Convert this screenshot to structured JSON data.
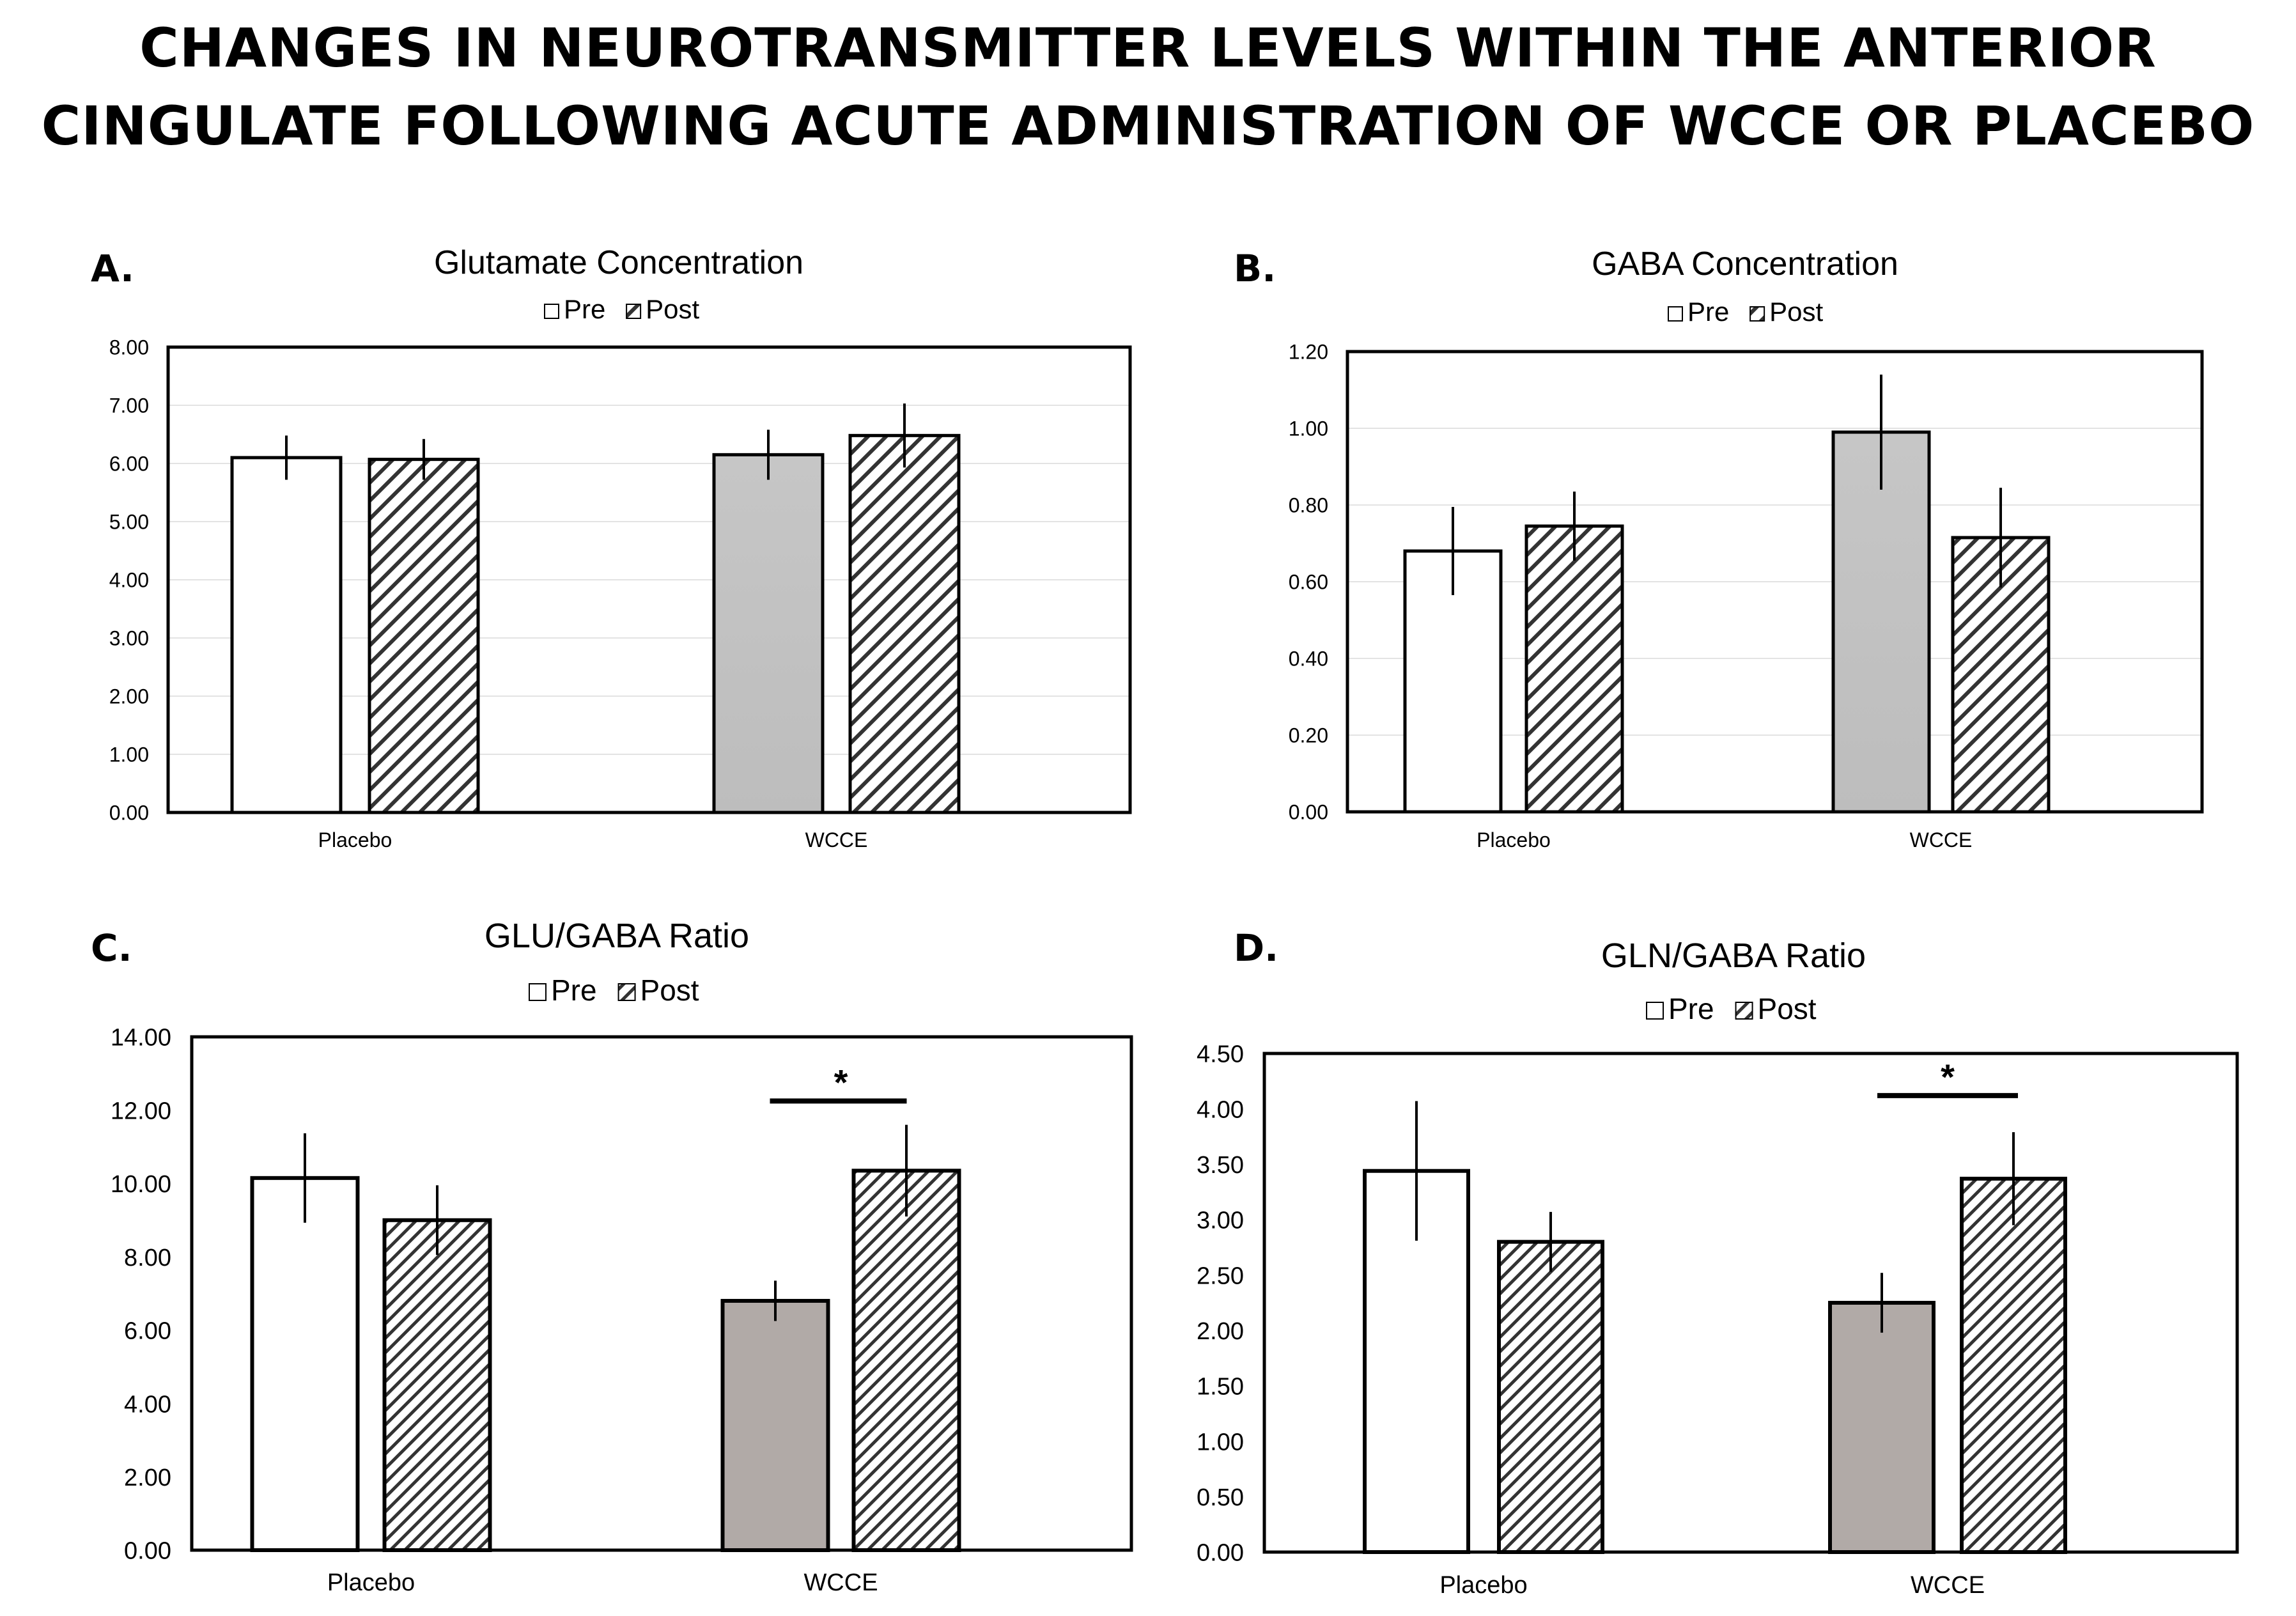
{
  "figure": {
    "title_line1": "CHANGES IN NEUROTRANSMITTER LEVELS WITHIN THE ANTERIOR",
    "title_line2": "CINGULATE FOLLOWING ACUTE ADMINISTRATION OF WCCE OR PLACEBO"
  },
  "colors": {
    "pre_placebo": "#ffffff",
    "pre_wcce_top": "#c4c4c4",
    "pre_wcce_bottom": "#b1aaa7",
    "hatch": "#333333",
    "grid": "#e3e3e3"
  },
  "chart_data": [
    {
      "panel_label": "A.",
      "type": "bar",
      "title": "Glutamate Concentration",
      "categories": [
        "Placebo",
        "WCCE"
      ],
      "legend": {
        "position": "top-center",
        "entries": [
          "Pre",
          "Post"
        ]
      },
      "series": [
        {
          "name": "Pre",
          "values": [
            6.1,
            6.15
          ],
          "errors": [
            0.38,
            0.43
          ],
          "fill": [
            "#ffffff",
            "#c4c4c4"
          ],
          "pattern": "solid"
        },
        {
          "name": "Post",
          "values": [
            6.07,
            6.48
          ],
          "errors": [
            0.35,
            0.55
          ],
          "pattern": "diagonal-hatch"
        }
      ],
      "yticks": [
        "0.00",
        "1.00",
        "2.00",
        "3.00",
        "4.00",
        "5.00",
        "6.00",
        "7.00",
        "8.00"
      ],
      "ylim": [
        0,
        8
      ],
      "grid": true,
      "significance": null
    },
    {
      "panel_label": "B.",
      "type": "bar",
      "title": "GABA Concentration",
      "categories": [
        "Placebo",
        "WCCE"
      ],
      "legend": {
        "position": "top-center",
        "entries": [
          "Pre",
          "Post"
        ]
      },
      "series": [
        {
          "name": "Pre",
          "values": [
            0.68,
            0.99
          ],
          "errors": [
            0.115,
            0.15
          ],
          "fill": [
            "#ffffff",
            "#c4c4c4"
          ],
          "pattern": "solid"
        },
        {
          "name": "Post",
          "values": [
            0.745,
            0.715
          ],
          "errors": [
            0.09,
            0.13
          ],
          "pattern": "diagonal-hatch"
        }
      ],
      "yticks": [
        "0.00",
        "0.20",
        "0.40",
        "0.60",
        "0.80",
        "1.00",
        "1.20"
      ],
      "ylim": [
        0,
        1.2
      ],
      "grid": true,
      "significance": null
    },
    {
      "panel_label": "C.",
      "type": "bar",
      "title": "GLU/GABA Ratio",
      "categories": [
        "Placebo",
        "WCCE"
      ],
      "legend": {
        "position": "top-center",
        "entries": [
          "Pre",
          "Post"
        ]
      },
      "series": [
        {
          "name": "Pre",
          "values": [
            10.15,
            6.8
          ],
          "errors": [
            1.22,
            0.55
          ],
          "fill": [
            "#ffffff",
            "#b1aaa7"
          ],
          "pattern": "solid"
        },
        {
          "name": "Post",
          "values": [
            9.0,
            10.35
          ],
          "errors": [
            0.95,
            1.25
          ],
          "pattern": "diagonal-hatch"
        }
      ],
      "yticks": [
        "0.00",
        "2.00",
        "4.00",
        "6.00",
        "8.00",
        "10.00",
        "12.00",
        "14.00"
      ],
      "ylim": [
        0,
        14
      ],
      "grid": false,
      "significance": {
        "category": "WCCE",
        "line_value": 12.25,
        "label": "*"
      }
    },
    {
      "panel_label": "D.",
      "type": "bar",
      "title": "GLN/GABA Ratio",
      "categories": [
        "Placebo",
        "WCCE"
      ],
      "legend": {
        "position": "top-center",
        "entries": [
          "Pre",
          "Post"
        ]
      },
      "series": [
        {
          "name": "Pre",
          "values": [
            3.44,
            2.25
          ],
          "errors": [
            0.63,
            0.27
          ],
          "fill": [
            "#ffffff",
            "#b1aaa7"
          ],
          "pattern": "solid"
        },
        {
          "name": "Post",
          "values": [
            2.8,
            3.37
          ],
          "errors": [
            0.27,
            0.42
          ],
          "pattern": "diagonal-hatch"
        }
      ],
      "yticks": [
        "0.00",
        "0.50",
        "1.00",
        "1.50",
        "2.00",
        "2.50",
        "3.00",
        "3.50",
        "4.00",
        "4.50"
      ],
      "ylim": [
        0,
        4.5
      ],
      "grid": false,
      "significance": {
        "category": "WCCE",
        "line_value": 4.12,
        "label": "*"
      }
    }
  ]
}
